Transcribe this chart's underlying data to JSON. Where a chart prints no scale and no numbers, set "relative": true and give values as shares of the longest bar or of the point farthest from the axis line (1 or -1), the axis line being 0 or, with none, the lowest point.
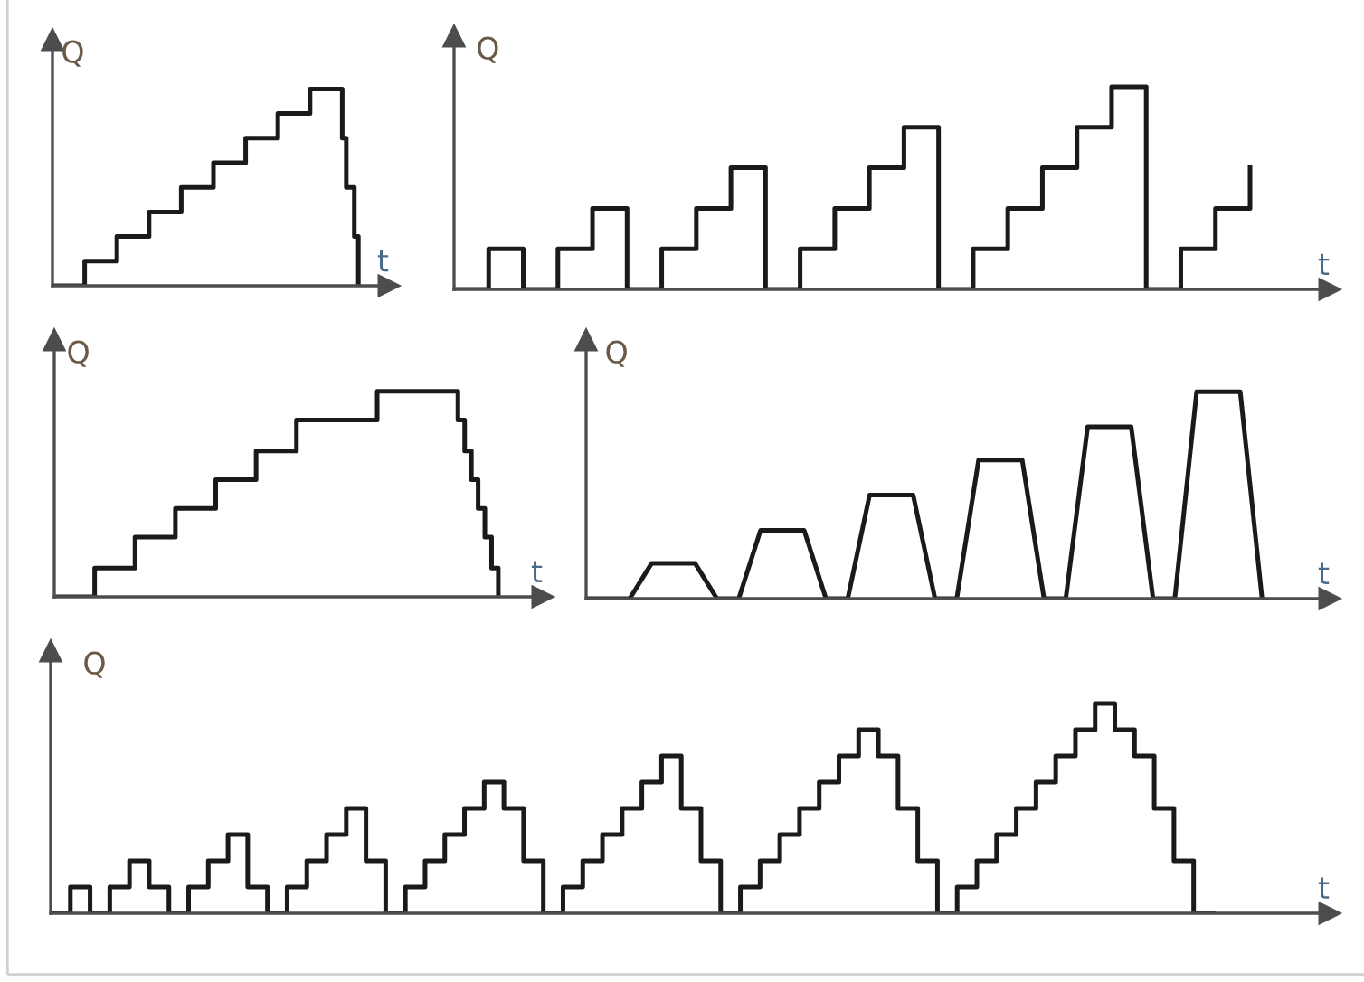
{
  "chart_data": [
    {
      "type": "step",
      "relative": true,
      "xlabel": "t",
      "ylabel": "Q",
      "color": "#1a1a1a",
      "categories": [
        null,
        null,
        null,
        null,
        null,
        null,
        null,
        null,
        null,
        null,
        null,
        null,
        null,
        null,
        null,
        null,
        null,
        null,
        null,
        null,
        null,
        null,
        null,
        null,
        null,
        null,
        null,
        null,
        null,
        null,
        null,
        null,
        null,
        null,
        null,
        null,
        null,
        null,
        null,
        null,
        null,
        null,
        null,
        null,
        null,
        null,
        null,
        null,
        null,
        null,
        null,
        null,
        null,
        null,
        null,
        null,
        null,
        null,
        null,
        null,
        null,
        null,
        null,
        null,
        null,
        null,
        null,
        null,
        null,
        null,
        null,
        null,
        null,
        null,
        null,
        null,
        null
      ],
      "values": [
        0,
        0,
        0,
        0,
        0,
        0,
        0,
        0,
        0.125,
        0.125,
        0.125,
        0.125,
        0.125,
        0.125,
        0.125,
        0.125,
        0.25,
        0.25,
        0.25,
        0.25,
        0.25,
        0.25,
        0.25,
        0.25,
        0.375,
        0.375,
        0.375,
        0.375,
        0.375,
        0.375,
        0.375,
        0.375,
        0.5,
        0.5,
        0.5,
        0.5,
        0.5,
        0.5,
        0.5,
        0.5,
        0.625,
        0.625,
        0.625,
        0.625,
        0.625,
        0.625,
        0.625,
        0.625,
        0.75,
        0.75,
        0.75,
        0.75,
        0.75,
        0.75,
        0.75,
        0.75,
        0.875,
        0.875,
        0.875,
        0.875,
        0.875,
        0.875,
        0.875,
        0.875,
        1,
        1,
        1,
        1,
        1,
        1,
        1,
        1,
        0.75,
        0.5,
        0.5,
        0.25,
        0
      ]
    },
    {
      "type": "step",
      "relative": true,
      "xlabel": "t",
      "ylabel": "Q",
      "color": "#1a1a1a",
      "categories": [
        null,
        null,
        null,
        null,
        null,
        null,
        null,
        null,
        null,
        null,
        null,
        null,
        null,
        null,
        null,
        null,
        null,
        null,
        null,
        null,
        null,
        null,
        null,
        null
      ],
      "values": [
        0,
        0.2,
        0,
        0.2,
        0.4,
        0,
        0.2,
        0.4,
        0.6,
        0,
        0.2,
        0.4,
        0.6,
        0.8,
        0,
        0.2,
        0.4,
        0.6,
        0.8,
        1,
        0,
        0.2,
        0.4,
        0.6
      ]
    },
    {
      "type": "step",
      "relative": true,
      "xlabel": "t",
      "ylabel": "Q",
      "color": "#1a1a1a",
      "categories": [
        null,
        null,
        null,
        null,
        null,
        null,
        null,
        null,
        null,
        null,
        null,
        null,
        null,
        null,
        null,
        null,
        null,
        null,
        null,
        null,
        null,
        null,
        null,
        null,
        null,
        null,
        null,
        null,
        null,
        null,
        null,
        null,
        null,
        null,
        null,
        null,
        null,
        null,
        null,
        null,
        null,
        null,
        null,
        null,
        null,
        null,
        null,
        null,
        null,
        null,
        null,
        null,
        null,
        null,
        null,
        null,
        null,
        null,
        null,
        null,
        null,
        null,
        null,
        null,
        null,
        null,
        null
      ],
      "values": [
        0,
        0,
        0,
        0,
        0,
        0,
        0.14,
        0.14,
        0.14,
        0.14,
        0.14,
        0.14,
        0.29,
        0.29,
        0.29,
        0.29,
        0.29,
        0.29,
        0.43,
        0.43,
        0.43,
        0.43,
        0.43,
        0.43,
        0.57,
        0.57,
        0.57,
        0.57,
        0.57,
        0.57,
        0.71,
        0.71,
        0.71,
        0.71,
        0.71,
        0.71,
        0.86,
        0.86,
        0.86,
        0.86,
        0.86,
        0.86,
        0.86,
        0.86,
        0.86,
        0.86,
        0.86,
        0.86,
        1,
        1,
        1,
        1,
        1,
        1,
        1,
        1,
        1,
        1,
        1,
        1,
        0.86,
        0.71,
        0.57,
        0.43,
        0.29,
        0.14,
        0
      ]
    },
    {
      "type": "line",
      "relative": true,
      "xlabel": "t",
      "ylabel": "Q",
      "color": "#1a1a1a",
      "categories": [
        null,
        null,
        null,
        null,
        null,
        null,
        null,
        null,
        null,
        null,
        null,
        null,
        null,
        null,
        null,
        null,
        null,
        null,
        null,
        null,
        null,
        null,
        null,
        null,
        null,
        null,
        null,
        null,
        null,
        null,
        null,
        null
      ],
      "values": [
        0,
        0,
        0,
        0.17,
        0.17,
        0.17,
        0,
        0,
        0.33,
        0.33,
        0.33,
        0,
        0,
        0.5,
        0.5,
        0.5,
        0,
        0,
        0.67,
        0.67,
        0.67,
        0,
        0,
        0.83,
        0.83,
        0.83,
        0,
        0,
        1,
        1,
        1,
        0
      ]
    },
    {
      "type": "step",
      "relative": true,
      "xlabel": "t",
      "ylabel": "Q",
      "color": "#1a1a1a",
      "categories": [
        null,
        null,
        null,
        null,
        null,
        null,
        null,
        null,
        null,
        null,
        null,
        null,
        null,
        null,
        null,
        null,
        null,
        null,
        null,
        null,
        null,
        null,
        null,
        null,
        null,
        null,
        null,
        null,
        null,
        null,
        null,
        null,
        null,
        null,
        null,
        null,
        null,
        null,
        null,
        null,
        null,
        null,
        null,
        null,
        null,
        null,
        null,
        null,
        null,
        null,
        null,
        null,
        null,
        null,
        null,
        null,
        null,
        null,
        null,
        null
      ],
      "values": [
        0,
        0.125,
        0,
        0.125,
        0.25,
        0.125,
        0,
        0.125,
        0.25,
        0.375,
        0.125,
        0,
        0.125,
        0.25,
        0.375,
        0.5,
        0.25,
        0,
        0.125,
        0.25,
        0.375,
        0.5,
        0.625,
        0.5,
        0.25,
        0,
        0.125,
        0.25,
        0.375,
        0.5,
        0.625,
        0.75,
        0.5,
        0.25,
        0,
        0.125,
        0.25,
        0.375,
        0.5,
        0.625,
        0.75,
        0.875,
        0.75,
        0.5,
        0.25,
        0,
        0.125,
        0.25,
        0.375,
        0.5,
        0.625,
        0.75,
        0.875,
        1,
        0.875,
        0.75,
        0.5,
        0.25,
        0,
        0
      ]
    }
  ]
}
